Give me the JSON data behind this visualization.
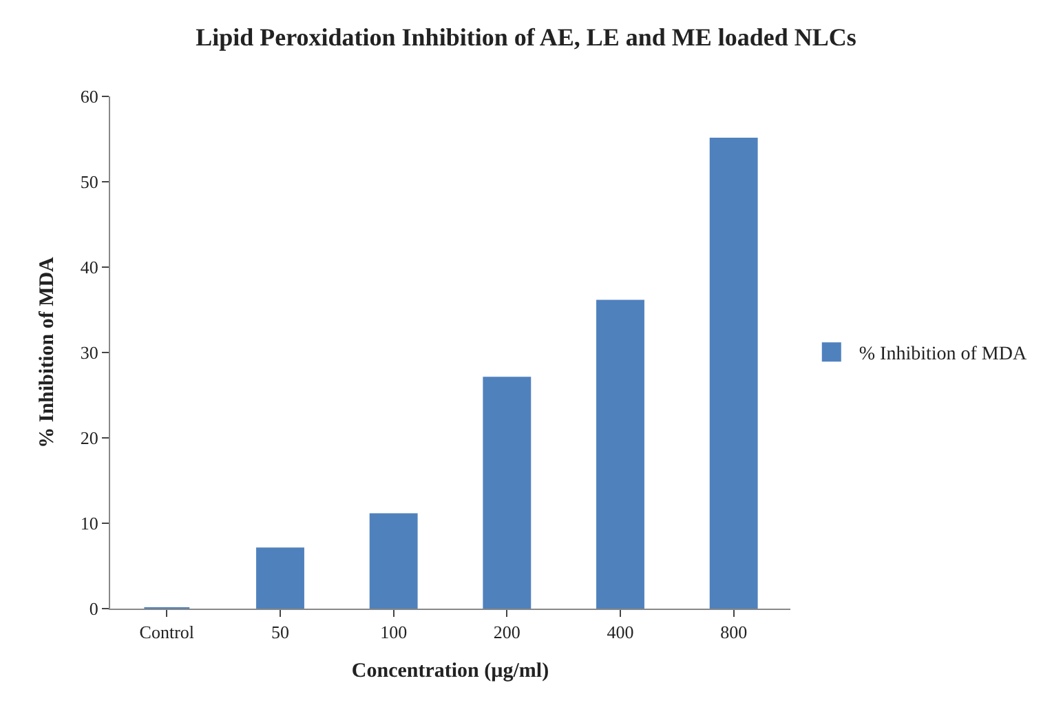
{
  "chart_data": {
    "type": "bar",
    "title": "Lipid Peroxidation Inhibition of AE, LE and ME loaded NLCs",
    "xlabel": "Concentration (µg/ml)",
    "ylabel": "% Inhibition of MDA",
    "categories": [
      "Control",
      "50",
      "100",
      "200",
      "400",
      "800"
    ],
    "series": [
      {
        "name": "% Inhibition of MDA",
        "color": "#4f81bd",
        "values": [
          0,
          7,
          11,
          27,
          36,
          55
        ]
      }
    ],
    "ylim": [
      0,
      60
    ],
    "yticks": [
      0,
      10,
      20,
      30,
      40,
      50,
      60
    ],
    "legend": "right"
  }
}
